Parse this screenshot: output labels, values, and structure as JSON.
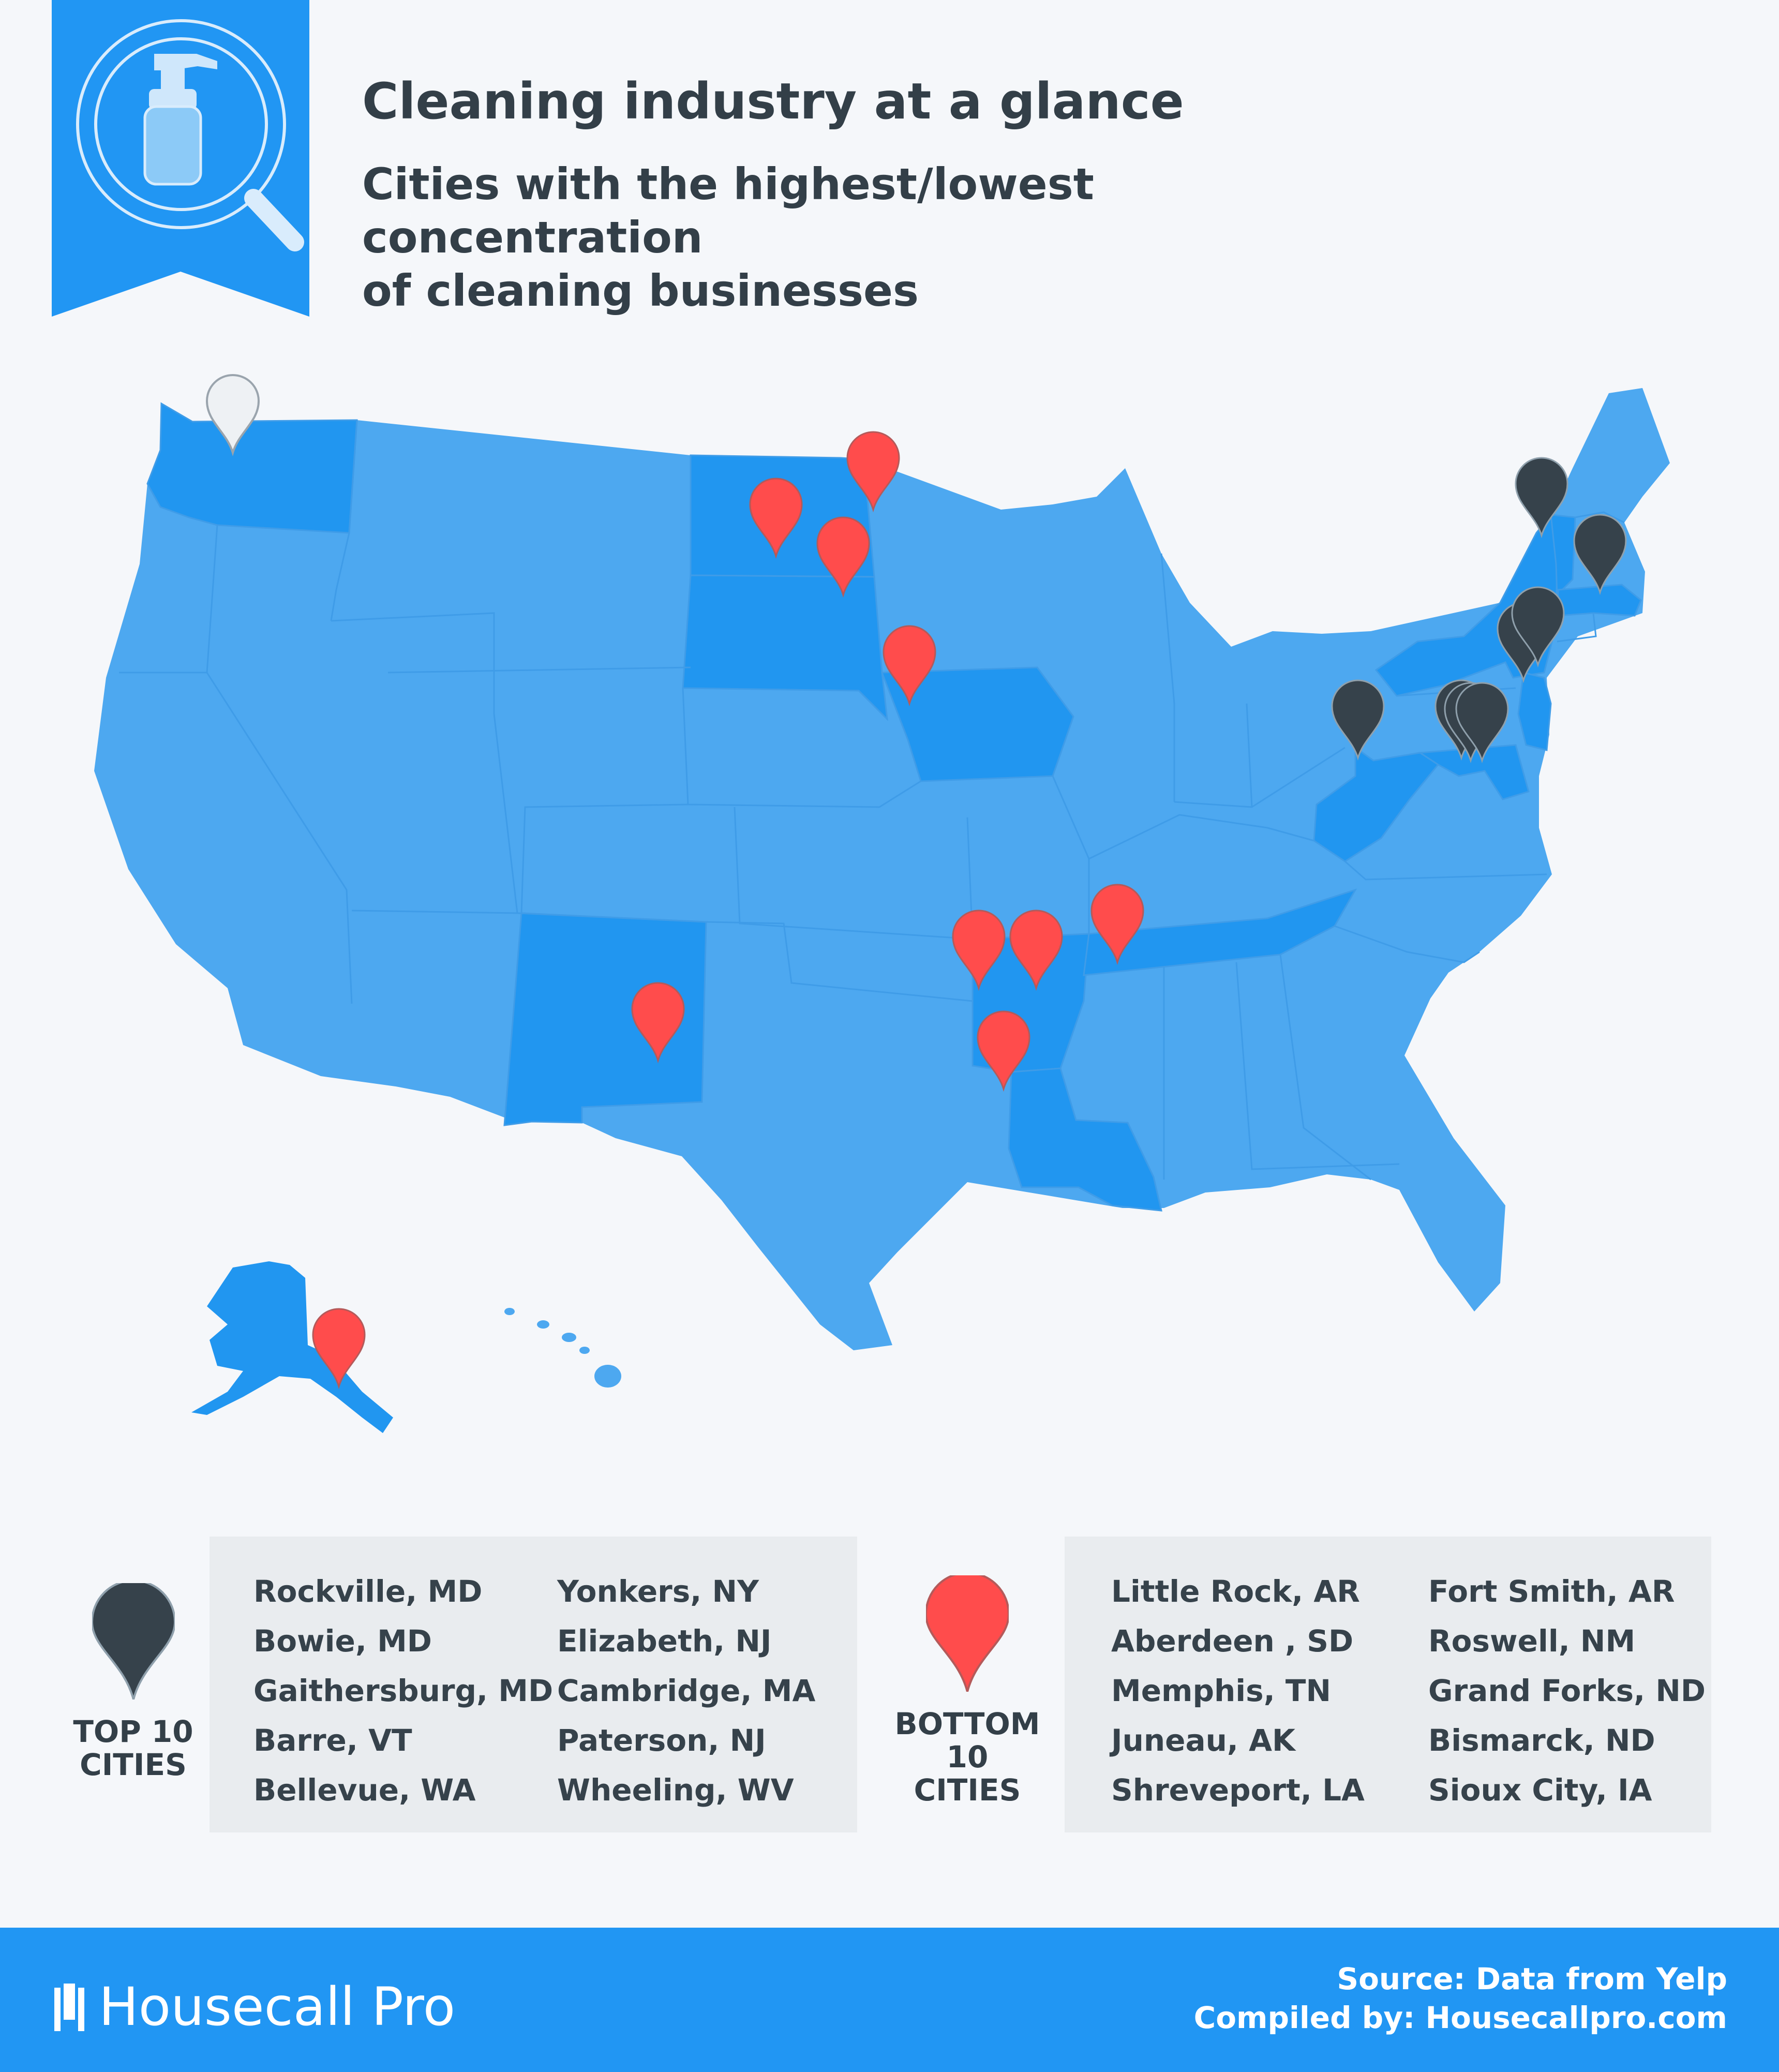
{
  "header": {
    "title": "Cleaning industry at a glance",
    "subtitle_line1": "Cities with the highest/lowest concentration",
    "subtitle_line2": "of cleaning businesses"
  },
  "colors": {
    "ribbon": "#2196f3",
    "state_light": "#4da8f0",
    "state_dark": "#2196f0",
    "pin_top": "#36424b",
    "pin_bottom": "#ff4c4c",
    "pin_empty": "#eef1f4",
    "footer": "#2196f3"
  },
  "icons": {
    "ribbon": "spray-bottle-magnifier-icon",
    "legend_top": "dark-map-pin-icon",
    "legend_bottom": "red-map-pin-icon",
    "brand": "housecall-pro-logo-icon"
  },
  "map": {
    "highlighted_states": [
      "WA",
      "ND",
      "SD",
      "IA",
      "NM",
      "AR",
      "LA",
      "TN",
      "NY",
      "VT",
      "MA",
      "NJ",
      "MD",
      "WV",
      "AK"
    ],
    "top_cities": [
      "Rockville, MD",
      "Bowie, MD",
      "Gaithersburg, MD",
      "Barre, VT",
      "Bellevue, WA",
      "Yonkers, NY",
      "Elizabeth, NJ",
      "Cambridge, MA",
      "Paterson, NJ",
      "Wheeling, WV"
    ],
    "bottom_cities": [
      "Little Rock, AR",
      "Aberdeen, SD",
      "Memphis, TN",
      "Juneau, AK",
      "Shreveport, LA",
      "Fort Smith, AR",
      "Roswell, NM",
      "Grand Forks, ND",
      "Bismarck, ND",
      "Sioux City, IA"
    ]
  },
  "legend": {
    "top_label_1": "TOP 10",
    "top_label_2": "CITIES",
    "bottom_label_1": "BOTTOM",
    "bottom_label_2": "10",
    "bottom_label_3": "CITIES"
  },
  "top_cities": {
    "left": [
      "Rockville, MD",
      "Bowie, MD",
      "Gaithersburg, MD",
      "Barre, VT",
      "Bellevue, WA"
    ],
    "right": [
      "Yonkers, NY",
      "Elizabeth, NJ",
      "Cambridge, MA",
      "Paterson, NJ",
      "Wheeling, WV"
    ]
  },
  "bottom_cities": {
    "left": [
      "Little Rock, AR",
      "Aberdeen , SD",
      "Memphis, TN",
      "Juneau, AK",
      "Shreveport, LA"
    ],
    "right": [
      "Fort Smith, AR",
      "Roswell, NM",
      "Grand Forks, ND",
      "Bismarck, ND",
      "Sioux City, IA"
    ]
  },
  "footer": {
    "brand": "Housecall Pro",
    "source": "Source: Data from Yelp",
    "compiled": "Compiled by: Housecallpro.com"
  }
}
